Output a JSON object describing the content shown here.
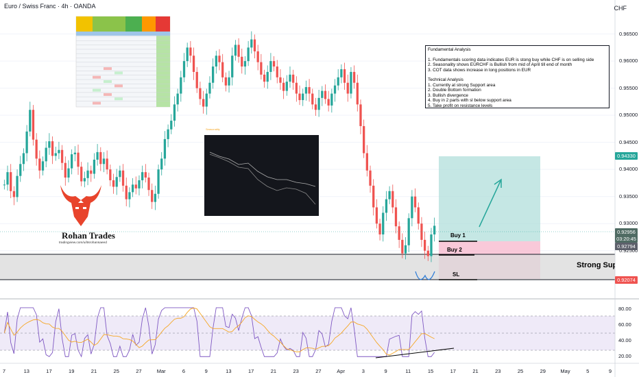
{
  "header": {
    "title": "Euro / Swiss Franc · 4h · OANDA",
    "currency": "CHF"
  },
  "colors": {
    "bull": "#26a69a",
    "bear": "#ef5350",
    "rsi": "#7e57c2",
    "rsi_ma": "#f5a623",
    "target_zone": "#b2dfdb",
    "stop_zone": "#f8bbd0",
    "arrow": "#26a69a",
    "buy_line": "#000000"
  },
  "analysis": {
    "heading": "Fundamental Analysis",
    "fundamental": [
      "1. Fundamentals scoring data indicates EUR is stong buy while CHF is on selling side",
      "2. Seasonality shows EURCHF is Bullish from mid of April till end of month",
      "3. COT data shows increase in long positions in EUR"
    ],
    "technical_heading": "Technical Analysis",
    "technical": [
      "1. Currently at strong Support area",
      "2. Double Bottom formation",
      "3. Bullish divergence",
      "4. Buy in 2 parts with sl below support area",
      "5. Take profit on resistance levels"
    ]
  },
  "brand": {
    "name": "Rohan Trades",
    "url": "tradingview.com/u/itsrohansaeed"
  },
  "trade_labels": {
    "buy1": "Buy 1",
    "buy2": "Buy 2",
    "sl": "SL",
    "support": "Strong Support"
  },
  "price_tags": [
    {
      "value": "0.94330",
      "color": "#26a69a"
    },
    {
      "value": "0.92956",
      "color": "#4f6b63"
    },
    {
      "value": "03:20:45",
      "color": "#4f6b63"
    },
    {
      "value": "0.92794",
      "color": "#5d606b"
    },
    {
      "value": "0.92074",
      "color": "#ef5350"
    }
  ],
  "chart_data": {
    "type": "candlestick",
    "title": "Euro / Swiss Franc · 4h · OANDA",
    "price_axis": {
      "labels": [
        "0.96500",
        "0.96000",
        "0.95500",
        "0.95000",
        "0.94500",
        "0.94000",
        "0.93500",
        "0.93000",
        "0.92500"
      ],
      "range": [
        0.9175,
        0.969
      ]
    },
    "date_labels": [
      "7",
      "13",
      "17",
      "19",
      "21",
      "25",
      "27",
      "Mar",
      "6",
      "9",
      "13",
      "17",
      "21",
      "23",
      "27",
      "Apr",
      "3",
      "9",
      "11",
      "15",
      "17",
      "21",
      "23",
      "25",
      "29",
      "May",
      "5",
      "9"
    ],
    "levels": {
      "buy1": 0.9305,
      "buy2": 0.927,
      "stop_loss": 0.92074,
      "take_profit": 0.9433,
      "support_top": 0.927,
      "support_bottom": 0.921
    },
    "close_series": [
      0.9372,
      0.9395,
      0.936,
      0.9349,
      0.9388,
      0.941,
      0.943,
      0.947,
      0.951,
      0.9455,
      0.942,
      0.9398,
      0.9415,
      0.944,
      0.9452,
      0.9425,
      0.943,
      0.9436,
      0.9412,
      0.9385,
      0.9402,
      0.9428,
      0.9431,
      0.9405,
      0.9378,
      0.9384,
      0.9398,
      0.9392,
      0.9418,
      0.9432,
      0.941,
      0.942,
      0.94,
      0.938,
      0.9368,
      0.9386,
      0.9398,
      0.937,
      0.9345,
      0.9358,
      0.9372,
      0.9365,
      0.938,
      0.9395,
      0.9385,
      0.9362,
      0.934,
      0.9355,
      0.94,
      0.942,
      0.9456,
      0.9474,
      0.949,
      0.952,
      0.954,
      0.957,
      0.96,
      0.9625,
      0.961,
      0.958,
      0.955,
      0.953,
      0.9516,
      0.954,
      0.956,
      0.959,
      0.961,
      0.9598,
      0.957,
      0.9555,
      0.957,
      0.961,
      0.963,
      0.9608,
      0.959,
      0.96,
      0.9625,
      0.964,
      0.9618,
      0.9598,
      0.9575,
      0.9562,
      0.958,
      0.96,
      0.959,
      0.957,
      0.956,
      0.9545,
      0.9562,
      0.9575,
      0.956,
      0.954,
      0.9528,
      0.954,
      0.9552,
      0.954,
      0.952,
      0.951,
      0.9532,
      0.9545,
      0.953,
      0.9518,
      0.954,
      0.9555,
      0.957,
      0.9585,
      0.956,
      0.954,
      0.958,
      0.956,
      0.952,
      0.948,
      0.943,
      0.9398,
      0.937,
      0.933,
      0.93,
      0.928,
      0.932,
      0.9345,
      0.936,
      0.933,
      0.9295,
      0.927,
      0.9245,
      0.926,
      0.931,
      0.935,
      0.933,
      0.93,
      0.927,
      0.925,
      0.924,
      0.928,
      0.9296
    ],
    "rsi": {
      "labels": [
        "80.00",
        "60.00",
        "40.00",
        "20.00"
      ],
      "range": [
        15,
        88
      ],
      "levels": [
        70,
        50,
        30
      ]
    }
  }
}
